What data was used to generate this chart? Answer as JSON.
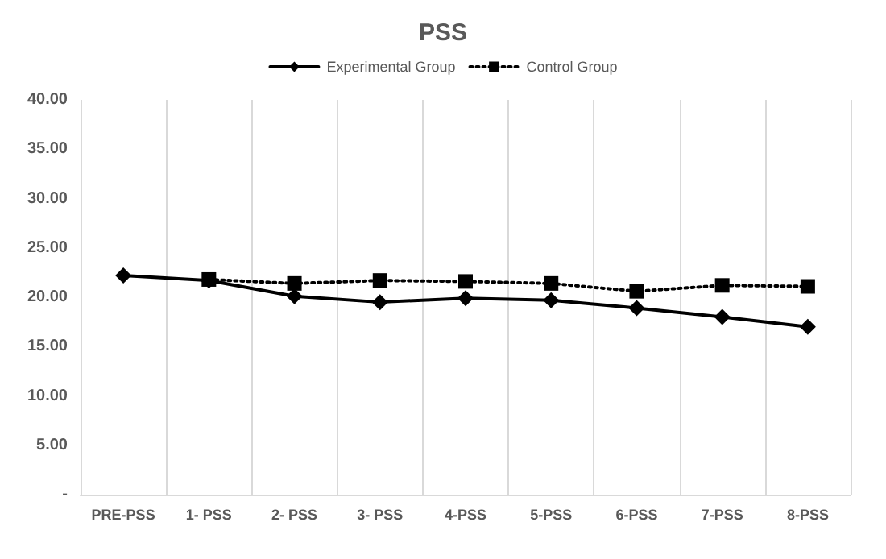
{
  "chart_data": {
    "type": "line",
    "title": "PSS",
    "categories": [
      "PRE-PSS",
      "1- PSS",
      "2- PSS",
      "3- PSS",
      "4-PSS",
      "5-PSS",
      "6-PSS",
      "7-PSS",
      "8-PSS"
    ],
    "series": [
      {
        "name": "Experimental Group",
        "color": "#000000",
        "marker": "diamond",
        "line_style": "solid",
        "values": [
          22.2,
          21.7,
          20.1,
          19.5,
          19.9,
          19.7,
          18.9,
          18.0,
          17.0
        ]
      },
      {
        "name": "Control Group",
        "color": "#000000",
        "marker": "square",
        "line_style": "dotted",
        "values": [
          null,
          21.8,
          21.4,
          21.7,
          21.6,
          21.4,
          20.6,
          21.2,
          21.1
        ]
      }
    ],
    "ylim": [
      0,
      40
    ],
    "yticks": [
      {
        "value": 0,
        "label": "-"
      },
      {
        "value": 5,
        "label": "5.00"
      },
      {
        "value": 10,
        "label": "10.00"
      },
      {
        "value": 15,
        "label": "15.00"
      },
      {
        "value": 20,
        "label": "20.00"
      },
      {
        "value": 25,
        "label": "25.00"
      },
      {
        "value": 30,
        "label": "30.00"
      },
      {
        "value": 35,
        "label": "35.00"
      },
      {
        "value": 40,
        "label": "40.00"
      }
    ],
    "grid": "x",
    "legend": "top"
  }
}
